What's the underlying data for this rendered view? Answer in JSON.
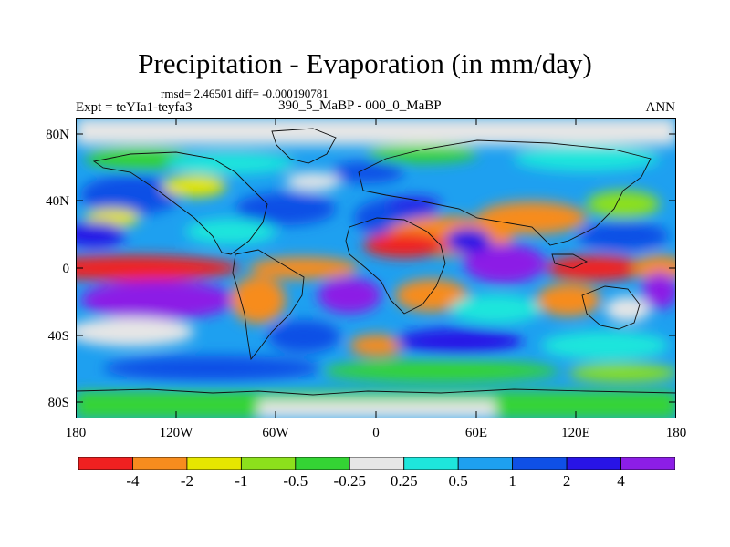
{
  "title": "Precipitation - Evaporation (in mm/day)",
  "stats": "rmsd= 2.46501 diff= -0.000190781",
  "experiment": "Expt = teYIa1-teyfa3",
  "period": "390_5_MaBP - 000_0_MaBP",
  "season": "ANN",
  "lat_labels": [
    "80N",
    "40N",
    "0",
    "40S",
    "80S"
  ],
  "lon_labels": [
    "180",
    "120W",
    "60W",
    "0",
    "60E",
    "120E",
    "180"
  ],
  "colorbar": {
    "colors": [
      "#f02020",
      "#f78c1e",
      "#e6e600",
      "#8ce01c",
      "#34d434",
      "#e6e6e6",
      "#1ee6dc",
      "#1ea0f0",
      "#0f50e6",
      "#2814e6",
      "#8c1ee6"
    ],
    "labels": [
      "-4",
      "-2",
      "-1",
      "-0.5",
      "-0.25",
      "0.25",
      "0.5",
      "1",
      "2",
      "4"
    ]
  }
}
